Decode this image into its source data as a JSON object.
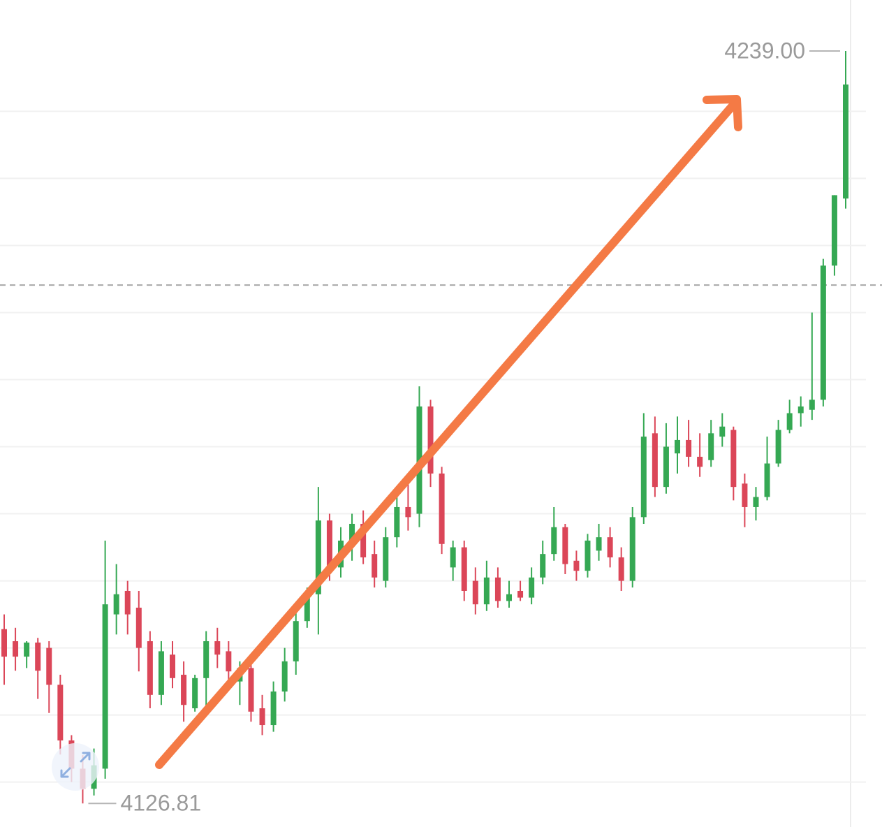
{
  "chart_data": {
    "type": "candlestick",
    "open": [
      4152.8,
      4151.0,
      4148.7,
      4150.8,
      4150.0,
      4144.5,
      4136.2,
      4132.0,
      4129.0,
      4132.0,
      4155.0,
      4158.5,
      4156.0,
      4151.0,
      4143.0,
      4149.0,
      4146.0,
      4141.0,
      4145.5,
      4151.0,
      4149.5,
      4145.0,
      4147.0,
      4141.0,
      4138.5,
      4143.5,
      4148.0,
      4154.0,
      4158.0,
      4169.0,
      4162.0,
      4166.0,
      4168.5,
      4164.0,
      4160.0,
      4166.5,
      4171.0,
      4170.0,
      4186.0,
      4176.0,
      4162.0,
      4165.0,
      4160.0,
      4156.5,
      4160.5,
      4157.0,
      4158.5,
      4157.5,
      4160.5,
      4164.0,
      4168.0,
      4163.0,
      4161.5,
      4164.5,
      4166.5,
      4163.5,
      4160.0,
      4169.5,
      4182.0,
      4174.0,
      4179.0,
      4181.0,
      4178.5,
      4178.0,
      4181.5,
      4182.5,
      4174.5,
      4171.0,
      4172.5,
      4177.5,
      4182.5,
      4185.0,
      4185.5,
      4187.0,
      4207.0,
      4217.0
    ],
    "high": [
      4155.0,
      4153.0,
      4151.0,
      4151.5,
      4151.0,
      4146.0,
      4137.0,
      4134.0,
      4135.0,
      4166.0,
      4162.5,
      4160.0,
      4158.5,
      4152.5,
      4151.0,
      4151.0,
      4148.0,
      4146.0,
      4152.5,
      4153.0,
      4151.0,
      4148.0,
      4148.5,
      4143.0,
      4145.0,
      4150.0,
      4156.0,
      4159.0,
      4174.0,
      4170.0,
      4168.0,
      4170.0,
      4170.5,
      4166.0,
      4168.0,
      4174.0,
      4174.5,
      4189.0,
      4187.0,
      4177.0,
      4166.0,
      4166.0,
      4162.0,
      4163.0,
      4162.0,
      4160.0,
      4160.0,
      4162.0,
      4166.0,
      4171.0,
      4168.5,
      4164.5,
      4167.0,
      4168.5,
      4168.0,
      4165.0,
      4171.0,
      4185.0,
      4184.5,
      4183.5,
      4184.5,
      4184.0,
      4182.0,
      4184.0,
      4185.0,
      4183.0,
      4176.0,
      4174.0,
      4181.5,
      4184.0,
      4187.0,
      4187.5,
      4200.0,
      4208.0,
      4217.5,
      4239.0
    ],
    "low": [
      4144.5,
      4146.6,
      4147.0,
      4142.4,
      4140.3,
      4134.1,
      4130.0,
      4126.81,
      4128.0,
      4130.5,
      4152.0,
      4152.0,
      4146.5,
      4141.0,
      4141.5,
      4144.0,
      4139.0,
      4140.5,
      4140.0,
      4147.0,
      4144.0,
      4141.5,
      4139.0,
      4137.0,
      4137.5,
      4142.0,
      4146.0,
      4153.0,
      4152.0,
      4160.0,
      4160.5,
      4163.0,
      4162.5,
      4159.0,
      4159.0,
      4165.0,
      4167.5,
      4168.0,
      4174.0,
      4164.0,
      4160.0,
      4157.0,
      4155.0,
      4155.5,
      4156.0,
      4156.0,
      4157.0,
      4156.5,
      4159.5,
      4163.0,
      4161.0,
      4160.0,
      4160.5,
      4163.0,
      4162.0,
      4158.5,
      4159.0,
      4168.5,
      4172.5,
      4173.0,
      4176.0,
      4177.0,
      4175.5,
      4177.0,
      4180.0,
      4172.0,
      4168.0,
      4169.0,
      4172.0,
      4177.0,
      4182.0,
      4183.0,
      4184.0,
      4186.0,
      4205.5,
      4215.5
    ],
    "close": [
      4148.7,
      4148.7,
      4150.8,
      4146.6,
      4144.5,
      4136.2,
      4132.0,
      4129.0,
      4132.5,
      4156.5,
      4158.0,
      4155.0,
      4150.0,
      4143.0,
      4149.5,
      4145.5,
      4141.5,
      4145.5,
      4151.0,
      4149.0,
      4146.5,
      4147.0,
      4140.5,
      4138.5,
      4143.5,
      4148.0,
      4154.0,
      4158.0,
      4169.0,
      4162.0,
      4166.0,
      4168.5,
      4163.5,
      4160.5,
      4166.5,
      4171.0,
      4169.5,
      4186.0,
      4176.0,
      4165.5,
      4165.0,
      4158.5,
      4156.5,
      4160.5,
      4157.0,
      4158.0,
      4157.5,
      4160.5,
      4164.0,
      4168.0,
      4162.5,
      4161.5,
      4166.0,
      4166.5,
      4163.5,
      4160.0,
      4169.5,
      4181.5,
      4174.0,
      4180.0,
      4181.0,
      4178.5,
      4177.0,
      4182.0,
      4183.0,
      4174.0,
      4171.0,
      4172.5,
      4177.5,
      4182.5,
      4185.0,
      4186.0,
      4187.0,
      4207.0,
      4217.5,
      4234.0
    ],
    "up_color": "#35a853",
    "down_color": "#db4658",
    "ylim": [
      4123.3,
      4246.6
    ],
    "grid": true,
    "gridlines": [
      4130,
      4140,
      4150,
      4160,
      4170,
      4180,
      4190,
      4200,
      4210,
      4220,
      4230
    ],
    "reference_line": 4204.1,
    "max_label": {
      "value": 4239,
      "label": "4239.00"
    },
    "min_label": {
      "value": 4126.81,
      "label": "4126.81"
    }
  }
}
